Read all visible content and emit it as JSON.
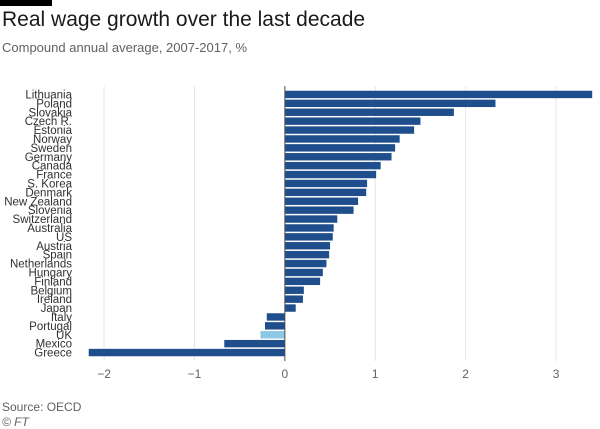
{
  "header": {
    "title": "Real wage growth over the last decade",
    "subtitle": "Compound annual average, 2007-2017, %"
  },
  "footer": {
    "source": "Source: OECD",
    "credit": "© FT"
  },
  "colors": {
    "bar": "#1f4e8c",
    "highlight": "#8cc7e6",
    "grid": "#e6e6e6",
    "zero_line": "#4d4d4d"
  },
  "chart_data": {
    "type": "bar",
    "orientation": "horizontal",
    "title": "Real wage growth over the last decade",
    "subtitle": "Compound annual average, 2007-2017, %",
    "categories": [
      "Lithuania",
      "Poland",
      "Slovakia",
      "Czech R.",
      "Estonia",
      "Norway",
      "Sweden",
      "Germany",
      "Canada",
      "France",
      "S. Korea",
      "Denmark",
      "New Zealand",
      "Slovenia",
      "Switzerland",
      "Australia",
      "US",
      "Austria",
      "Spain",
      "Netherlands",
      "Hungary",
      "Finland",
      "Belgium",
      "Ireland",
      "Japan",
      "Italy",
      "Portugal",
      "UK",
      "Mexico",
      "Greece"
    ],
    "values": [
      3.4,
      2.33,
      1.87,
      1.5,
      1.43,
      1.27,
      1.22,
      1.18,
      1.06,
      1.01,
      0.91,
      0.9,
      0.81,
      0.76,
      0.58,
      0.54,
      0.53,
      0.5,
      0.49,
      0.46,
      0.42,
      0.39,
      0.21,
      0.2,
      0.12,
      -0.2,
      -0.22,
      -0.27,
      -0.67,
      -2.17
    ],
    "highlight": "UK",
    "xlim": [
      -2.2,
      3.42
    ],
    "xticks": [
      -2,
      -1,
      0,
      1,
      2,
      3
    ],
    "grid": true
  }
}
